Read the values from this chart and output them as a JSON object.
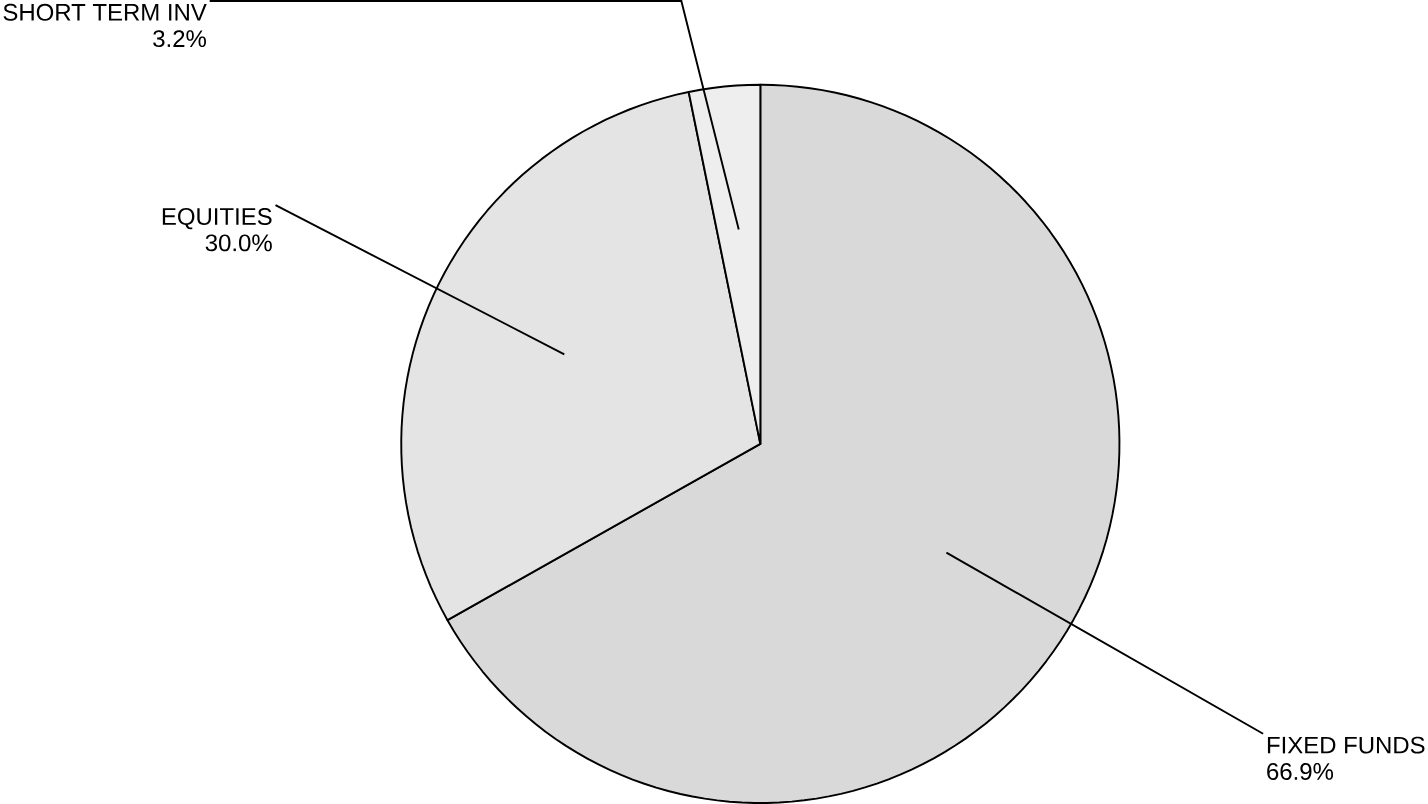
{
  "chart_data": {
    "type": "pie",
    "categories": [
      "FIXED FUNDS",
      "EQUITIES",
      "SHORT TERM INV"
    ],
    "values": [
      66.9,
      30.0,
      3.2
    ],
    "value_labels": [
      "66.9%",
      "30.0%",
      "3.2%"
    ],
    "colors": [
      "#d9d9d9",
      "#e4e4e4",
      "#eeeeee"
    ]
  }
}
